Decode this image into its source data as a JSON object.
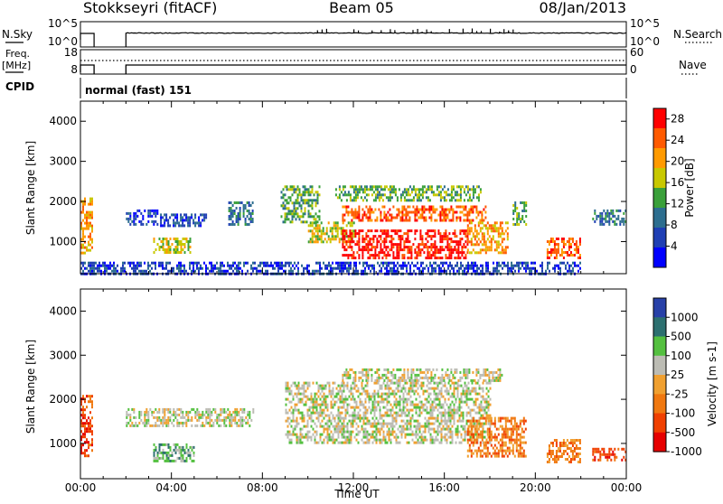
{
  "header": {
    "radar_title": "Stokkseyri (fitACF)",
    "beam": "Beam 05",
    "date": "08/Jan/2013"
  },
  "strips": {
    "nsky_label": "N.Sky",
    "nsky_tick_top": "10^5",
    "nsky_tick_bottom": "10^0",
    "nsearch_label": "N.Search",
    "freq_label": "Freq.",
    "freq_unit": "[MHz]",
    "freq_tick_top": "18",
    "freq_tick_bottom": "8",
    "nave_tick_top": "60",
    "nave_tick_bottom": "0",
    "nave_label": "Nave",
    "cpid_label": "CPID",
    "cpid_value": "normal (fast) 151"
  },
  "colors": {
    "power": [
      "#0000ff",
      "#1f3fb4",
      "#2d6e8f",
      "#3aa03a",
      "#c8c800",
      "#ff9a00",
      "#ff5a00",
      "#ff0000"
    ],
    "velocity": [
      "#2841a8",
      "#2d7070",
      "#54c040",
      "#bcbcb4",
      "#f0a030",
      "#f07810",
      "#f04000",
      "#e60000"
    ]
  },
  "chart_data": [
    {
      "type": "heatmap",
      "panel": "power",
      "ylabel": "Slant Range [km]",
      "xlabel": "",
      "x_range_hours": [
        0,
        24
      ],
      "ylim": [
        200,
        4500
      ],
      "y_ticks": [
        "1000",
        "2000",
        "3000",
        "4000"
      ],
      "x_ticks": [
        "00:00",
        "04:00",
        "08:00",
        "12:00",
        "16:00",
        "20:00",
        "00:00"
      ],
      "colorbar": {
        "label": "Power [dB]",
        "ticks": [
          "4",
          "8",
          "12",
          "16",
          "20",
          "24",
          "28"
        ],
        "range": [
          0,
          30
        ]
      },
      "regions": [
        {
          "t0": 0.0,
          "t1": 0.5,
          "r0": 700,
          "r1": 2100,
          "level": 5
        },
        {
          "t0": 2.0,
          "t1": 3.4,
          "r0": 1400,
          "r1": 1800,
          "level": 1
        },
        {
          "t0": 3.5,
          "t1": 5.5,
          "r0": 1400,
          "r1": 1700,
          "level": 1
        },
        {
          "t0": 3.2,
          "t1": 4.8,
          "r0": 700,
          "r1": 1100,
          "level": 4
        },
        {
          "t0": 6.5,
          "t1": 7.6,
          "r0": 1400,
          "r1": 2000,
          "level": 2
        },
        {
          "t0": 8.8,
          "t1": 10.5,
          "r0": 1500,
          "r1": 2400,
          "level": 3
        },
        {
          "t0": 10.0,
          "t1": 12.0,
          "r0": 1000,
          "r1": 1500,
          "level": 4
        },
        {
          "t0": 11.2,
          "t1": 17.6,
          "r0": 2000,
          "r1": 2400,
          "level": 3
        },
        {
          "t0": 11.5,
          "t1": 17.8,
          "r0": 1500,
          "r1": 1900,
          "level": 6
        },
        {
          "t0": 11.5,
          "t1": 17.0,
          "r0": 600,
          "r1": 1300,
          "level": 7
        },
        {
          "t0": 17.0,
          "t1": 18.8,
          "r0": 700,
          "r1": 1500,
          "level": 5
        },
        {
          "t0": 19.0,
          "t1": 19.6,
          "r0": 1400,
          "r1": 2000,
          "level": 3
        },
        {
          "t0": 20.5,
          "t1": 22.0,
          "r0": 600,
          "r1": 1100,
          "level": 6
        },
        {
          "t0": 22.5,
          "t1": 24.0,
          "r0": 1400,
          "r1": 1800,
          "level": 2
        },
        {
          "t0": 0.0,
          "t1": 22.0,
          "r0": 200,
          "r1": 500,
          "level": 1
        }
      ]
    },
    {
      "type": "heatmap",
      "panel": "velocity",
      "ylabel": "Slant Range [km]",
      "xlabel": "Time UT",
      "x_range_hours": [
        0,
        24
      ],
      "ylim": [
        200,
        4500
      ],
      "y_ticks": [
        "1000",
        "2000",
        "3000",
        "4000"
      ],
      "x_ticks": [
        "00:00",
        "04:00",
        "08:00",
        "12:00",
        "16:00",
        "20:00",
        "00:00"
      ],
      "colorbar": {
        "label": "Velocity [m s-1]",
        "ticks": [
          "1000",
          "500",
          "100",
          "25",
          "-25",
          "-100",
          "-500",
          "-1000"
        ]
      },
      "regions": [
        {
          "t0": 0.0,
          "t1": 0.5,
          "r0": 700,
          "r1": 2100,
          "level": 6
        },
        {
          "t0": 2.0,
          "t1": 7.6,
          "r0": 1400,
          "r1": 1800,
          "level": 3
        },
        {
          "t0": 3.2,
          "t1": 5.0,
          "r0": 600,
          "r1": 1000,
          "level": 2
        },
        {
          "t0": 9.0,
          "t1": 18.0,
          "r0": 1000,
          "r1": 2400,
          "level": 3
        },
        {
          "t0": 11.5,
          "t1": 18.5,
          "r0": 2400,
          "r1": 2700,
          "level": 3
        },
        {
          "t0": 17.0,
          "t1": 19.6,
          "r0": 700,
          "r1": 1600,
          "level": 5
        },
        {
          "t0": 20.5,
          "t1": 22.0,
          "r0": 600,
          "r1": 1100,
          "level": 5
        },
        {
          "t0": 22.5,
          "t1": 24.0,
          "r0": 600,
          "r1": 900,
          "level": 6
        }
      ]
    }
  ]
}
